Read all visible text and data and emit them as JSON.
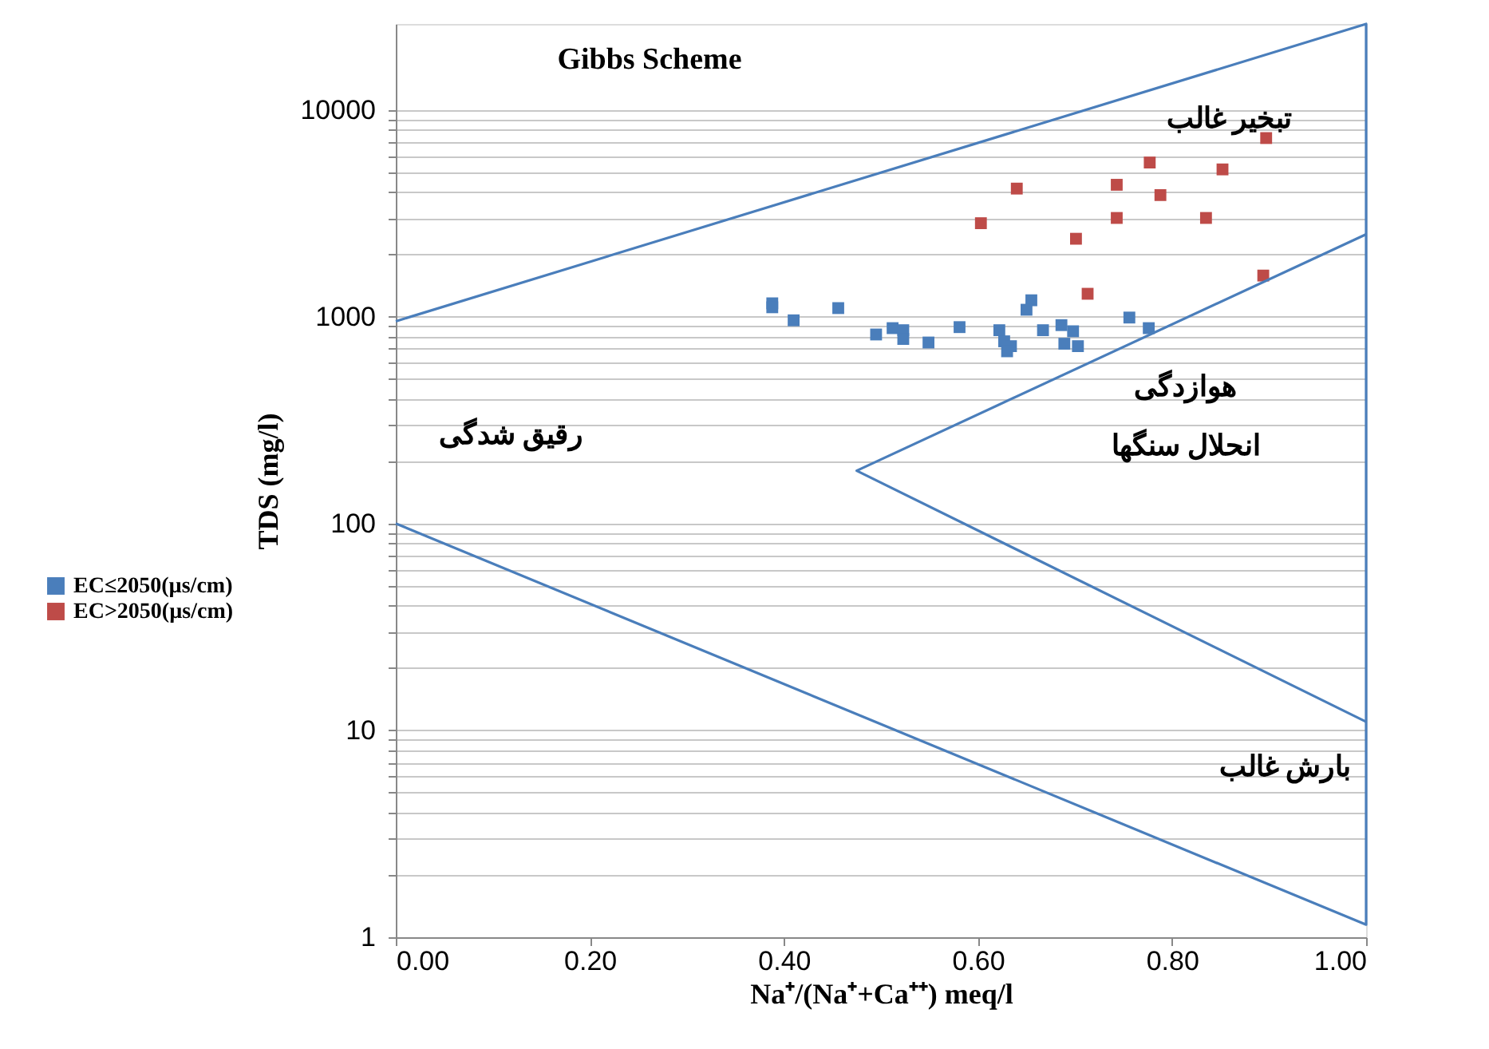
{
  "chart_data": {
    "type": "scatter",
    "title": "Gibbs Scheme",
    "xlabel": "Na⁺/(Na⁺+Ca⁺⁺) meq/l",
    "ylabel": "TDS (mg/l)",
    "log": "y",
    "grid": "y",
    "legend": "left",
    "marker": "square",
    "xlim": [
      0,
      1
    ],
    "xticks": [
      {
        "value": 0,
        "label": "0.00"
      },
      {
        "value": 0.2,
        "label": "0.20"
      },
      {
        "value": 0.4,
        "label": "0.40"
      },
      {
        "value": 0.6,
        "label": "0.60"
      },
      {
        "value": 0.8,
        "label": "0.80"
      },
      {
        "value": 1,
        "label": "1.00"
      }
    ],
    "ylim": [
      1,
      26000
    ],
    "yticks": [
      1,
      {
        "value": 2,
        "label": null
      },
      {
        "value": 3,
        "label": null
      },
      {
        "value": 4,
        "label": null
      },
      {
        "value": 5,
        "label": null
      },
      {
        "value": 6,
        "label": null
      },
      {
        "value": 7,
        "label": null
      },
      {
        "value": 8,
        "label": null
      },
      {
        "value": 9,
        "label": null
      },
      10,
      {
        "value": 20,
        "label": null
      },
      {
        "value": 30,
        "label": null
      },
      {
        "value": 40,
        "label": null
      },
      {
        "value": 50,
        "label": null
      },
      {
        "value": 60,
        "label": null
      },
      {
        "value": 70,
        "label": null
      },
      {
        "value": 80,
        "label": null
      },
      {
        "value": 90,
        "label": null
      },
      100,
      {
        "value": 200,
        "label": null
      },
      {
        "value": 300,
        "label": null
      },
      {
        "value": 400,
        "label": null
      },
      {
        "value": 500,
        "label": null
      },
      {
        "value": 600,
        "label": null
      },
      {
        "value": 700,
        "label": null
      },
      {
        "value": 800,
        "label": null
      },
      {
        "value": 900,
        "label": null
      },
      1000,
      {
        "value": 2000,
        "label": null
      },
      {
        "value": 3000,
        "label": null
      },
      {
        "value": 4000,
        "label": null
      },
      {
        "value": 5000,
        "label": null
      },
      {
        "value": 6000,
        "label": null
      },
      {
        "value": 7000,
        "label": null
      },
      {
        "value": 8000,
        "label": null
      },
      {
        "value": 9000,
        "label": null
      },
      10000
    ],
    "series": [
      {
        "name": "EC≤2050(µs/cm)",
        "color": "#4a7ebb",
        "x": [
          0.388,
          0.388,
          0.41,
          0.456,
          0.495,
          0.512,
          0.523,
          0.523,
          0.549,
          0.581,
          0.622,
          0.627,
          0.634,
          0.63,
          0.655,
          0.65,
          0.667,
          0.686,
          0.698,
          0.689,
          0.703,
          0.756,
          0.776
        ],
        "values": [
          1160,
          1110,
          960,
          1100,
          820,
          880,
          860,
          780,
          750,
          890,
          860,
          760,
          720,
          680,
          1200,
          1080,
          860,
          910,
          850,
          740,
          720,
          990,
          880
        ]
      },
      {
        "name": "EC>2050(µs/cm)",
        "color": "#be4b48",
        "x": [
          0.897,
          0.777,
          0.852,
          0.743,
          0.64,
          0.788,
          0.743,
          0.835,
          0.603,
          0.701,
          0.713,
          0.894
        ],
        "values": [
          7300,
          5560,
          5150,
          4340,
          4160,
          3870,
          3000,
          3000,
          2830,
          2380,
          1290,
          1580
        ]
      },
      {
        "type": "line",
        "marker": "none",
        "color": "#4a7ebb",
        "x": [
          0,
          1,
          1,
          0
        ],
        "values": [
          950,
          26000,
          1.15,
          100
        ]
      },
      {
        "type": "line",
        "marker": "none",
        "color": "#4a7ebb",
        "x": [
          1,
          0.475,
          1
        ],
        "values": [
          2500,
          180,
          11
        ]
      }
    ],
    "annotations": [
      "تبخیر غالب",
      "هوازدگی",
      "انحلال سنگها",
      "رقیق شدگی",
      "بارش غالب"
    ]
  }
}
